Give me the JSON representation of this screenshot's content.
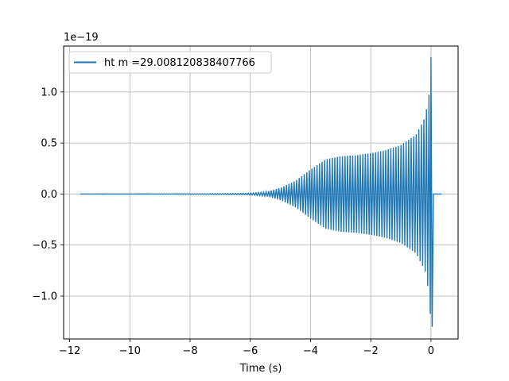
{
  "chart_data": {
    "type": "line",
    "title": "",
    "xlabel": "Time (s)",
    "ylabel": "",
    "y_offset_label": "1e−19",
    "xlim": [
      -12.2,
      0.9
    ],
    "ylim": [
      -1.42,
      1.45
    ],
    "x_ticks": [
      -12,
      -10,
      -8,
      -6,
      -4,
      -2,
      0
    ],
    "x_tick_labels": [
      "−12",
      "−10",
      "−8",
      "−6",
      "−4",
      "−2",
      "0"
    ],
    "y_ticks": [
      -1.0,
      -0.5,
      0.0,
      0.5,
      1.0
    ],
    "y_tick_labels": [
      "−1.0",
      "−0.5",
      "0.0",
      "0.5",
      "1.0"
    ],
    "grid": true,
    "legend_position": "top-left",
    "color": "#1f77b4",
    "series": [
      {
        "name": "ht m =29.008120838407766",
        "x_start": -11.65,
        "x_merger": 0.0,
        "x_end": 0.35,
        "envelope": {
          "t": [
            -11.65,
            -7.0,
            -6.0,
            -5.5,
            -5.0,
            -4.5,
            -4.0,
            -3.5,
            -3.0,
            -2.5,
            -2.0,
            -1.5,
            -1.0,
            -0.5,
            -0.2,
            -0.05,
            0.0
          ],
          "amp": [
            0.0,
            0.003,
            0.008,
            0.02,
            0.06,
            0.13,
            0.24,
            0.34,
            0.37,
            0.38,
            0.4,
            0.43,
            0.48,
            0.58,
            0.75,
            1.0,
            1.34
          ]
        },
        "peak_max": 1.34,
        "peak_min": -1.3,
        "post_merger_value": 0.0
      }
    ]
  }
}
